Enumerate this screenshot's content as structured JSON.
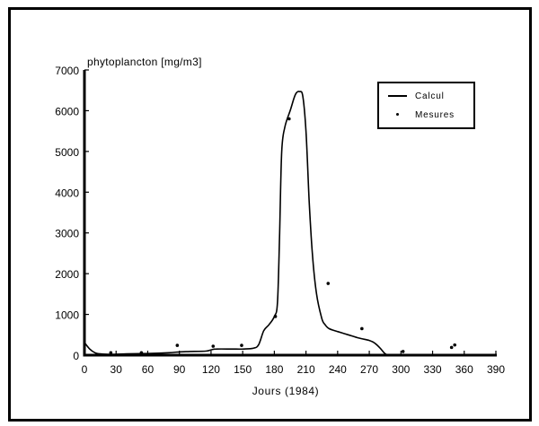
{
  "chart_data": {
    "type": "line",
    "title": "",
    "ylabel": "phytoplancton [mg/m3]",
    "xlabel": "Jours (1984)",
    "xlim": [
      0,
      390
    ],
    "ylim": [
      0,
      7000
    ],
    "xticks": [
      0,
      30,
      60,
      90,
      120,
      150,
      180,
      210,
      240,
      270,
      300,
      330,
      360,
      390
    ],
    "yticks": [
      0,
      1000,
      2000,
      3000,
      4000,
      5000,
      6000,
      7000
    ],
    "grid": false,
    "legend_position": "upper right",
    "legend": [
      "Calcul",
      "Mesures"
    ],
    "series": [
      {
        "name": "Calcul",
        "style": "line",
        "x": [
          0,
          5,
          10,
          15,
          25,
          40,
          60,
          80,
          90,
          100,
          115,
          120,
          125,
          140,
          150,
          160,
          165,
          170,
          175,
          180,
          183,
          185,
          187,
          190,
          195,
          200,
          204,
          207,
          210,
          213,
          216,
          220,
          225,
          228,
          232,
          240,
          250,
          260,
          270,
          275,
          280,
          284,
          287
        ],
        "y": [
          310,
          150,
          60,
          30,
          20,
          30,
          40,
          60,
          80,
          90,
          100,
          130,
          150,
          150,
          150,
          170,
          250,
          600,
          750,
          950,
          1300,
          3000,
          5000,
          5600,
          6000,
          6400,
          6470,
          6350,
          5500,
          3800,
          2500,
          1500,
          900,
          750,
          650,
          580,
          500,
          420,
          360,
          300,
          180,
          60,
          0
        ]
      },
      {
        "name": "Mesures",
        "style": "points",
        "x": [
          25,
          54,
          88,
          122,
          149,
          181,
          194,
          231,
          263,
          302,
          348,
          351
        ],
        "y": [
          60,
          60,
          240,
          220,
          240,
          950,
          5800,
          1760,
          650,
          90,
          190,
          250
        ]
      }
    ]
  },
  "axes": {
    "y_title": "phytoplancton [mg/m3]",
    "x_title": "Jours (1984)",
    "y_tick_labels": [
      "0",
      "1000",
      "2000",
      "3000",
      "4000",
      "5000",
      "6000",
      "7000"
    ],
    "x_tick_labels": [
      "0",
      "30",
      "60",
      "90",
      "120",
      "150",
      "180",
      "210",
      "240",
      "270",
      "300",
      "330",
      "360",
      "390"
    ]
  },
  "legend": {
    "items": [
      {
        "label": "Calcul",
        "marker": "line"
      },
      {
        "label": "Mesures",
        "marker": "dot"
      }
    ]
  },
  "colors": {
    "line": "#000000",
    "background": "#ffffff"
  }
}
